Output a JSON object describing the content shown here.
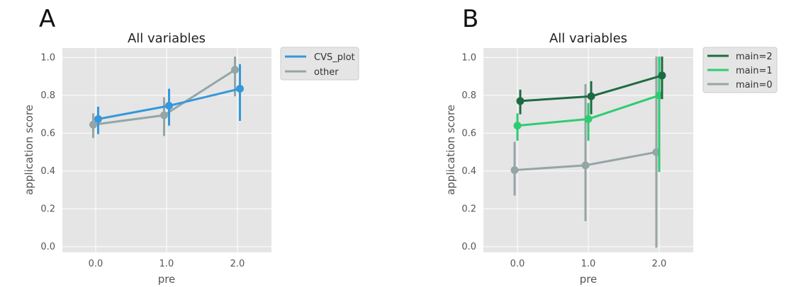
{
  "chart_data": [
    {
      "panel_label": "A",
      "type": "line",
      "title": "All variables",
      "xlabel": "pre",
      "ylabel": "application score",
      "categories": [
        "0.0",
        "1.0",
        "2.0"
      ],
      "yticks": [
        "0.0",
        "0.2",
        "0.4",
        "0.6",
        "0.8",
        "1.0"
      ],
      "ylim": [
        -0.03,
        1.05
      ],
      "grid": true,
      "legend_position": "outside-right-top",
      "series": [
        {
          "name": "CVS_plot",
          "color": "#3498db",
          "values": [
            0.675,
            0.745,
            0.835
          ],
          "ci_low": [
            0.595,
            0.64,
            0.665
          ],
          "ci_high": [
            0.74,
            0.835,
            0.965
          ]
        },
        {
          "name": "other",
          "color": "#95a5a6",
          "values": [
            0.645,
            0.695,
            0.935
          ],
          "ci_low": [
            0.575,
            0.585,
            0.795
          ],
          "ci_high": [
            0.705,
            0.79,
            1.005
          ]
        }
      ]
    },
    {
      "panel_label": "B",
      "type": "line",
      "title": "All variables",
      "xlabel": "pre",
      "ylabel": "application score",
      "categories": [
        "0.0",
        "1.0",
        "2.0"
      ],
      "yticks": [
        "0.0",
        "0.2",
        "0.4",
        "0.6",
        "0.8",
        "1.0"
      ],
      "ylim": [
        -0.03,
        1.05
      ],
      "grid": true,
      "legend_position": "outside-right-top",
      "series": [
        {
          "name": "main=2",
          "color": "#1e6b41",
          "values": [
            0.77,
            0.795,
            0.905
          ],
          "ci_low": [
            0.7,
            0.7,
            0.78
          ],
          "ci_high": [
            0.83,
            0.875,
            1.005
          ]
        },
        {
          "name": "main=1",
          "color": "#2ecc71",
          "values": [
            0.64,
            0.675,
            0.8
          ],
          "ci_low": [
            0.56,
            0.56,
            0.395
          ],
          "ci_high": [
            0.705,
            0.76,
            1.005
          ]
        },
        {
          "name": "main=0",
          "color": "#95a5a6",
          "values": [
            0.405,
            0.43,
            0.5
          ],
          "ci_low": [
            0.27,
            0.135,
            -0.005
          ],
          "ci_high": [
            0.555,
            0.86,
            1.005
          ]
        }
      ]
    }
  ]
}
